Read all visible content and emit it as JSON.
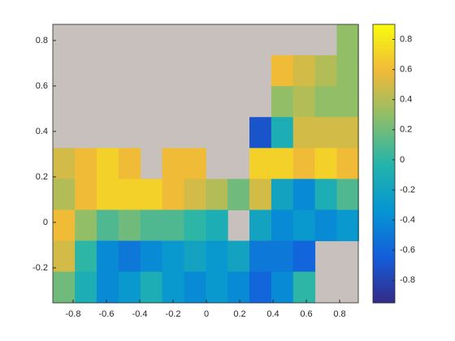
{
  "chart_data": {
    "type": "heatmap",
    "x": [
      -0.855,
      -0.724,
      -0.593,
      -0.462,
      -0.331,
      -0.2,
      -0.069,
      0.062,
      0.193,
      0.324,
      0.455,
      0.586,
      0.717,
      0.848
    ],
    "y": [
      0.803,
      0.667,
      0.531,
      0.395,
      0.259,
      0.123,
      -0.013,
      -0.149,
      -0.285
    ],
    "values": [
      [
        null,
        null,
        null,
        null,
        null,
        null,
        null,
        null,
        null,
        null,
        null,
        null,
        null,
        0.3
      ],
      [
        null,
        null,
        null,
        null,
        null,
        null,
        null,
        null,
        null,
        null,
        0.6,
        0.5,
        0.4,
        0.3
      ],
      [
        null,
        null,
        null,
        null,
        null,
        null,
        null,
        null,
        null,
        null,
        0.3,
        0.4,
        0.3,
        0.3
      ],
      [
        null,
        null,
        null,
        null,
        null,
        null,
        null,
        null,
        null,
        -0.7,
        -0.1,
        0.5,
        0.5,
        0.5
      ],
      [
        0.5,
        0.6,
        0.7,
        0.6,
        null,
        0.6,
        0.6,
        null,
        null,
        0.7,
        0.7,
        0.6,
        0.7,
        0.6
      ],
      [
        0.4,
        0.6,
        0.7,
        0.7,
        0.7,
        0.6,
        0.5,
        0.4,
        0.2,
        0.5,
        -0.2,
        -0.4,
        -0.1,
        0.1
      ],
      [
        0.6,
        0.3,
        0.1,
        0.2,
        0.1,
        0.1,
        0.0,
        -0.1,
        null,
        -0.2,
        -0.4,
        -0.3,
        -0.4,
        -0.3
      ],
      [
        0.5,
        0.0,
        -0.4,
        -0.5,
        -0.4,
        -0.3,
        -0.2,
        -0.3,
        -0.2,
        -0.5,
        -0.5,
        -0.6,
        null,
        null
      ],
      [
        0.2,
        -0.1,
        -0.4,
        -0.3,
        -0.1,
        -0.3,
        -0.4,
        -0.3,
        -0.4,
        -0.6,
        -0.4,
        0.0,
        null,
        null
      ]
    ],
    "xlim": [
      -0.922,
      0.912
    ],
    "ylim": [
      -0.354,
      0.871
    ],
    "xticks": [
      -0.8,
      -0.6,
      -0.4,
      -0.2,
      0,
      0.2,
      0.4,
      0.6,
      0.8
    ],
    "yticks": [
      -0.2,
      0,
      0.2,
      0.4,
      0.6,
      0.8
    ],
    "clim": [
      -0.95,
      0.9
    ],
    "cticks": [
      -0.8,
      -0.6,
      -0.4,
      -0.2,
      0,
      0.2,
      0.4,
      0.6,
      0.8
    ],
    "land_color": "#c8c0bc"
  }
}
